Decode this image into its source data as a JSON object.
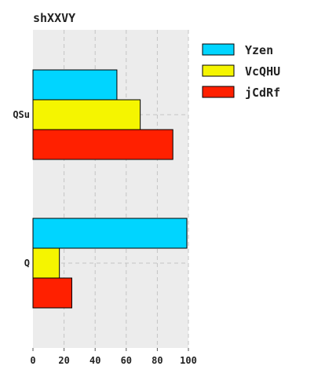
{
  "chart_data": {
    "type": "bar",
    "orientation": "horizontal",
    "title": "shXXVY",
    "categories": [
      "QSu",
      "Q"
    ],
    "series": [
      {
        "name": "Yzen",
        "values": [
          54,
          99
        ],
        "color": "#00d5ff"
      },
      {
        "name": "VcQHU",
        "values": [
          69,
          17
        ],
        "color": "#f5f500"
      },
      {
        "name": "jCdRf",
        "values": [
          90,
          25
        ],
        "color": "#ff2000"
      }
    ],
    "xlim": [
      0,
      100
    ],
    "xticks": [
      0,
      20,
      40,
      60,
      80,
      100
    ],
    "grid": true,
    "legend": "top-right",
    "xlabel": "",
    "ylabel": ""
  }
}
